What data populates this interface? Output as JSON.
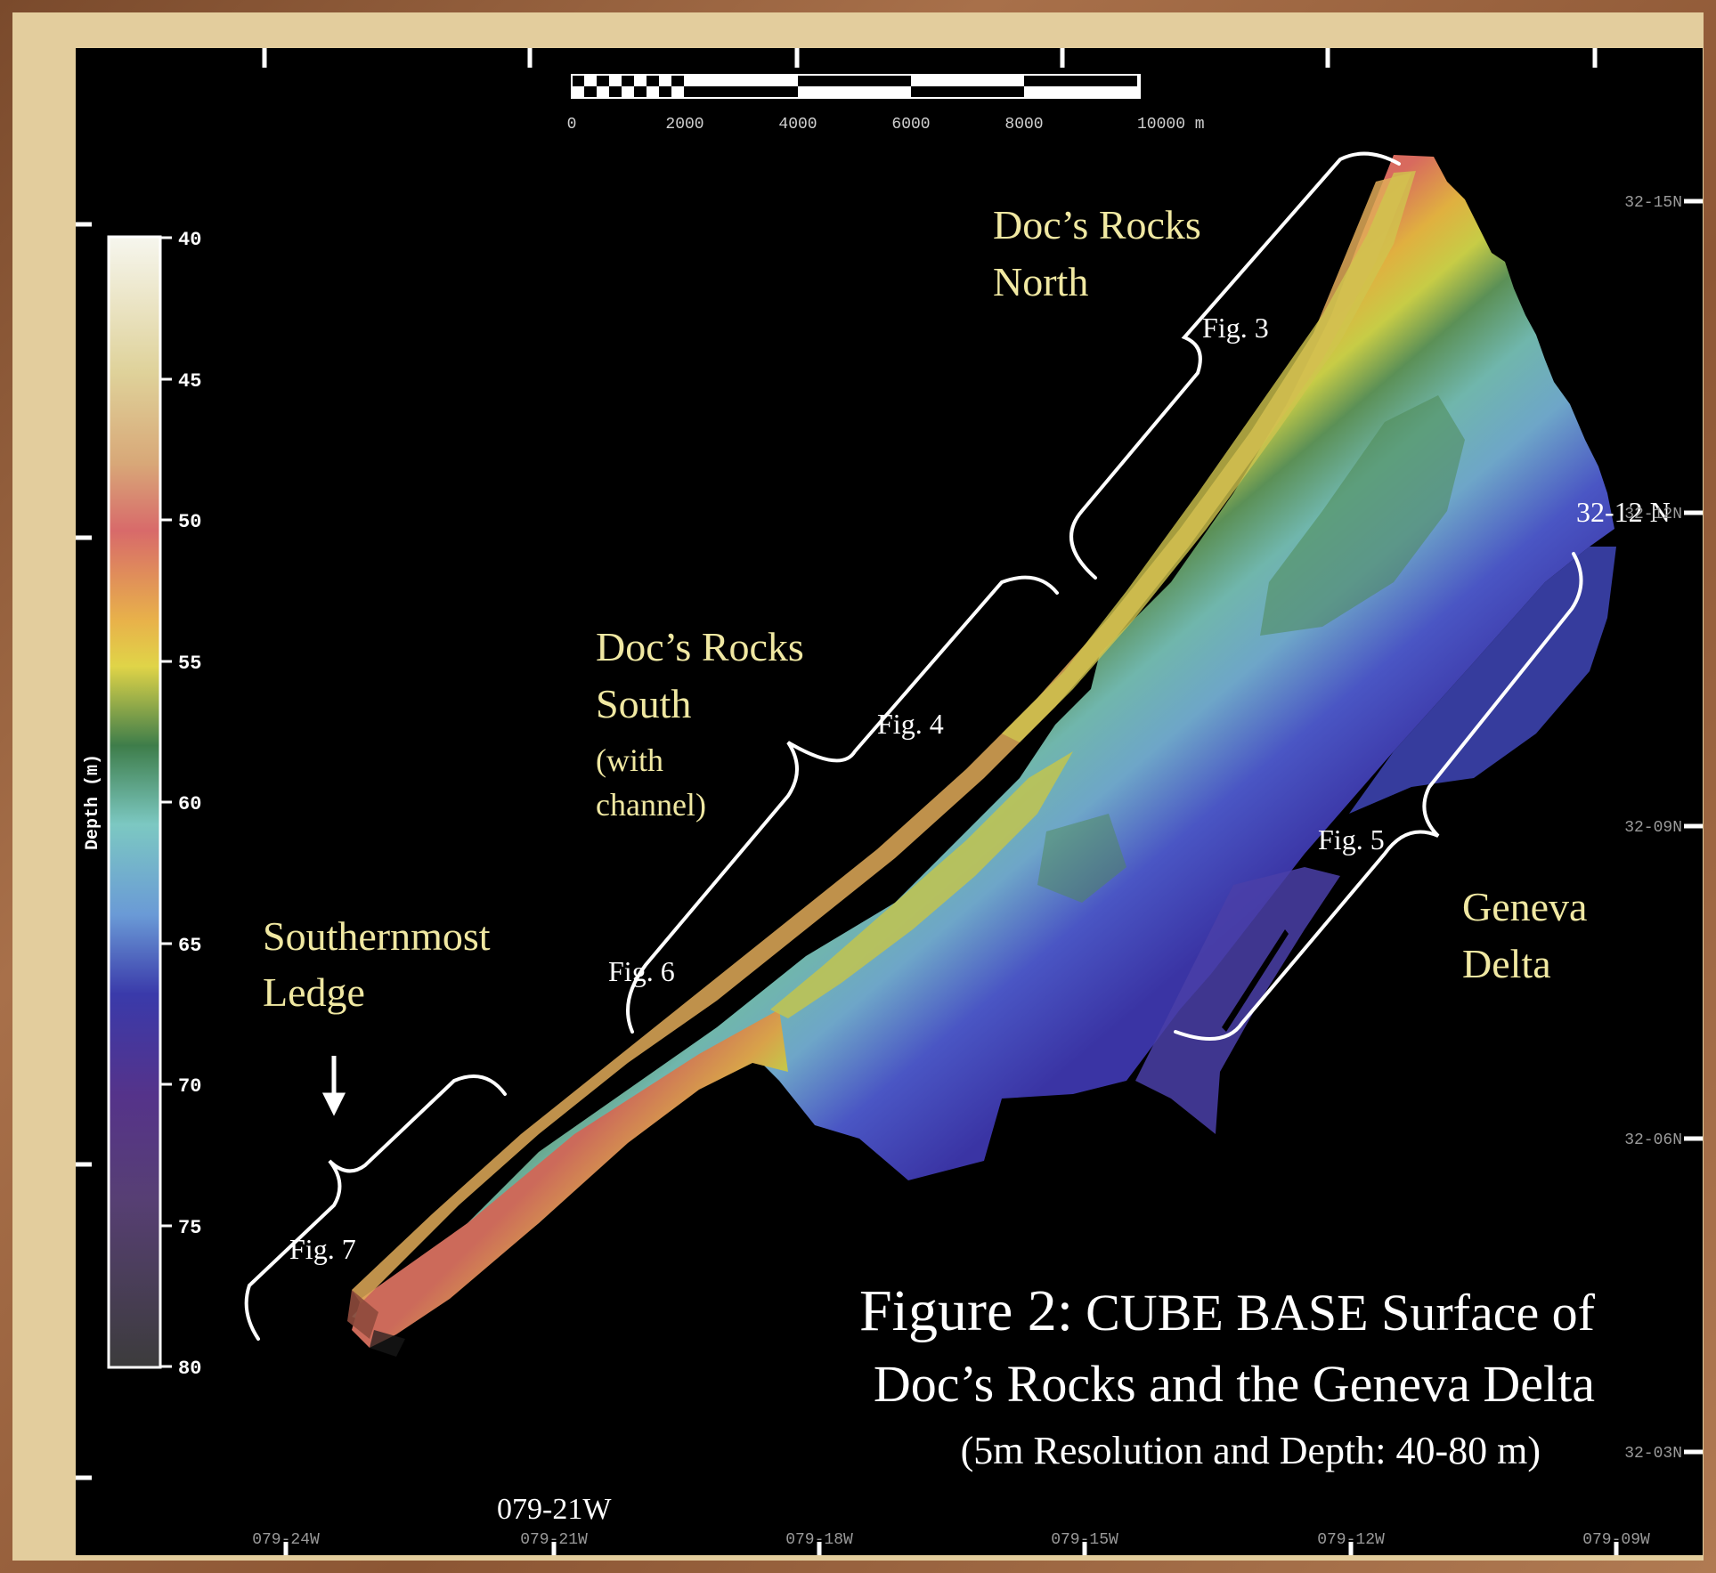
{
  "map": {
    "title_line1_prefix": "Figure 2:",
    "title_line1_rest": "CUBE BASE Surface of",
    "title_line2": "Doc’s Rocks and the Geneva Delta",
    "title_line3": "(5m Resolution and Depth: 40-80 m)"
  },
  "scale_bar": {
    "labels": [
      "0",
      "2000",
      "4000",
      "6000",
      "8000",
      "10000 m"
    ]
  },
  "colorbar": {
    "axis_label": "Depth (m)",
    "ticks": [
      "40",
      "45",
      "50",
      "55",
      "60",
      "65",
      "70",
      "75",
      "80"
    ],
    "min": 40,
    "max": 80,
    "colors": [
      "#f4f4ea",
      "#d9b870",
      "#d9686a",
      "#e2d048",
      "#3f7f4a",
      "#86d0d2",
      "#3b3aa8",
      "#5a3c82",
      "#3f3f3f"
    ]
  },
  "longitude_ticks": [
    "079-24W",
    "079-21W",
    "079-18W",
    "079-15W",
    "079-12W",
    "079-09W"
  ],
  "latitude_ticks": [
    "32-15N",
    "32-12N",
    "32-09N",
    "32-06N",
    "32-03N"
  ],
  "region_labels": {
    "docs_rocks_north": [
      "Doc’s Rocks",
      "North"
    ],
    "docs_rocks_south": [
      "Doc’s Rocks",
      "South"
    ],
    "docs_rocks_south_note": [
      "(with",
      "channel)"
    ],
    "geneva_delta": [
      "Geneva",
      "Delta"
    ],
    "southernmost_ledge": [
      "Southernmost",
      "Ledge"
    ]
  },
  "figure_labels": {
    "fig3": "Fig. 3",
    "fig4": "Fig. 4",
    "fig5": "Fig. 5",
    "fig6": "Fig. 6",
    "fig7": "Fig. 7"
  },
  "overlay_labels": {
    "lon_079_21w": "079-21W",
    "lat_32_12n": "32-12 N"
  },
  "colors": {
    "label_yellow": "#f0e8a2",
    "frame": "#e3cd9d",
    "background": "#000000"
  }
}
